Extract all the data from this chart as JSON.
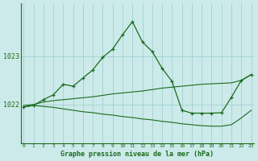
{
  "title": "Graphe pression niveau de la mer (hPa)",
  "background_color": "#cceaea",
  "grid_color": "#99cccc",
  "line_color": "#1a6b1a",
  "x_ticks": [
    0,
    1,
    2,
    3,
    4,
    5,
    6,
    7,
    8,
    9,
    10,
    11,
    12,
    13,
    14,
    15,
    16,
    17,
    18,
    19,
    20,
    21,
    22,
    23
  ],
  "xlim": [
    -0.3,
    23.3
  ],
  "ylim": [
    1021.2,
    1024.1
  ],
  "yticks": [
    1022,
    1023
  ],
  "main_x": [
    0,
    1,
    2,
    3,
    4,
    5,
    6,
    7,
    8,
    9,
    10,
    11,
    12,
    13,
    14,
    15,
    16,
    17,
    18,
    19,
    20,
    21,
    22,
    23
  ],
  "main_y": [
    1021.95,
    1021.98,
    1022.1,
    1022.2,
    1022.42,
    1022.38,
    1022.55,
    1022.72,
    1022.98,
    1023.15,
    1023.45,
    1023.72,
    1023.3,
    1023.1,
    1022.75,
    1022.48,
    1021.88,
    1021.82,
    1021.82,
    1021.82,
    1021.83,
    1022.15,
    1022.5,
    1022.62
  ],
  "upper_x": [
    0,
    1,
    2,
    3,
    4,
    5,
    6,
    7,
    8,
    9,
    10,
    11,
    12,
    13,
    14,
    15,
    16,
    17,
    18,
    19,
    20,
    21,
    22,
    23
  ],
  "upper_y": [
    1021.98,
    1022.0,
    1022.05,
    1022.08,
    1022.1,
    1022.12,
    1022.14,
    1022.16,
    1022.19,
    1022.22,
    1022.24,
    1022.26,
    1022.28,
    1022.31,
    1022.34,
    1022.36,
    1022.38,
    1022.4,
    1022.42,
    1022.43,
    1022.44,
    1022.45,
    1022.5,
    1022.62
  ],
  "lower_x": [
    0,
    1,
    2,
    3,
    4,
    5,
    6,
    7,
    8,
    9,
    10,
    11,
    12,
    13,
    14,
    15,
    16,
    17,
    18,
    19,
    20,
    21,
    22,
    23
  ],
  "lower_y": [
    1021.95,
    1021.98,
    1021.96,
    1021.94,
    1021.91,
    1021.88,
    1021.85,
    1021.83,
    1021.8,
    1021.78,
    1021.75,
    1021.73,
    1021.7,
    1021.68,
    1021.65,
    1021.63,
    1021.6,
    1021.58,
    1021.56,
    1021.55,
    1021.55,
    1021.58,
    1021.72,
    1021.88
  ]
}
